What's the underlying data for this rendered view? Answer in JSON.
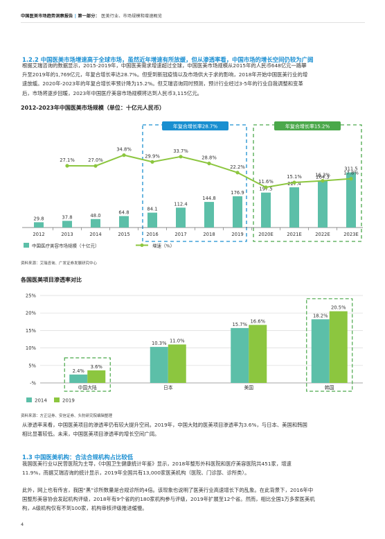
{
  "header": {
    "report_title": "中国医美市场趋势洞察报告",
    "separator": "|",
    "section_label": "第一部分：",
    "section_sub": "医美行业、市场规模和增速概览"
  },
  "section_122": {
    "title": "1.2.2 中国医美市场增速高于全球市场，虽然近年增速有所放缓，但从渗透率看，中国市场的增长空间仍较为广阔",
    "paragraph": "根据艾瑞咨询的数据显示，2015-2019年，中国医美需求增速超过全球，中国医美市场规模从2015年的人民币648亿元一路攀\n升至2019年的1,769亿元，年复合增长率达28.7%。但受到新冠疫情以及市场供大于求的影响，2018年开始中国医美行业的增\n速放缓。2020年-2023年的年复合增长率预计降为15.2%。但艾瑞咨询同时预测，预计行业经过3-5年的行业自我调整和变革\n后，市场将逐步回暖，2023年中国医疗美容市场规模将达到人民币3,115亿元。"
  },
  "chart1": {
    "title": "2012-2023年中国医美市场规模（单位：十亿元人民币）",
    "source": "资料来源：艾瑞咨询、广发证券发展研究中心",
    "box_label_left": "年复合增长率28.7%",
    "box_label_right": "年复合增长率15.2%"
  },
  "chart2": {
    "title": "各国医美项目渗透率对比",
    "source": "资料来源：方正证券、安信证券、头豹研究院编辑整理"
  },
  "para_after_chart2": "从渗透率来看，中国医美项目的渗透率仍有较大提升空间。2019年，中国大陆的医美项目渗透率为3.6%，与日本、美国和韩国\n相比显著较低。未来，中国医美项目渗透率的增长空间广阔。",
  "section_13": {
    "title": "1.3 中国医美机构：合法合规机构占比较低",
    "paragraph1": "我国医美行业以民营医院为主导，《中国卫生健康统计年鉴》显示，2018年整形外科医院和医疗美容医院共451家，增速\n11.9%，而据艾瑞咨询的统计显示，2019年全国共有13,000家医美机构（医院、门诊部、诊所类）。",
    "paragraph2": "此外，网上也有传言，我国“黑”诊所数量是合规诊所的4倍。该现象也说明了医美行业高速增长下的乱象。在此背景下，2016年中\n国整形美容协会发起机构评级，2018年有9个省的约180家机构参与评级，2019年扩展至12个省。然而，相比全国1万多家医美机\n构，A级机构仅有不到100家，机构审核评级推进缓慢。"
  },
  "page_number": "4",
  "chart_data": [
    {
      "type": "bar+line",
      "title": "2012-2023年中国医美市场规模（单位：十亿元人民币）",
      "categories": [
        "2012",
        "2013",
        "2014",
        "2015",
        "2016",
        "2017",
        "2018",
        "2019",
        "2020E",
        "2021E",
        "2022E",
        "2023E"
      ],
      "series": [
        {
          "name": "中国医疗美容市场规模（十亿元）",
          "kind": "bar",
          "values": [
            29.8,
            37.8,
            48.0,
            64.8,
            84.1,
            112.4,
            144.8,
            176.9,
            197.5,
            227.4,
            264.3,
            311.5
          ],
          "labels": [
            "29.8",
            "37.8",
            "48.0",
            "64.8",
            "84.1",
            "112.4",
            "144.8",
            "176.9",
            "197.5",
            "227.4",
            "264.3",
            "311.5"
          ]
        },
        {
          "name": "增速（%）",
          "kind": "line",
          "values": [
            null,
            27.1,
            27.0,
            34.8,
            29.9,
            33.7,
            28.8,
            22.2,
            11.6,
            15.1,
            16.3,
            17.8
          ],
          "labels": [
            "",
            "27.1%",
            "27.0%",
            "34.8%",
            "29.9%",
            "33.7%",
            "28.8%",
            "22.2%",
            "11.6%",
            "15.1%",
            "16.3%",
            "17.8%"
          ]
        }
      ],
      "colors": {
        "bar": "#5cbfa8",
        "line": "#8cc63f",
        "box_left": "#1a8fd0",
        "box_right": "#4aa84a"
      },
      "legend_placement": "bottom-left"
    },
    {
      "type": "bar",
      "title": "各国医美项目渗透率对比",
      "categories": [
        "中国大陆",
        "日本",
        "美国",
        "韩国"
      ],
      "series": [
        {
          "name": "2014",
          "values": [
            2.4,
            10.3,
            15.7,
            18.2
          ],
          "labels": [
            "2.4%",
            "10.3%",
            "15.7%",
            "18.2%"
          ]
        },
        {
          "name": "2019",
          "values": [
            3.6,
            11.0,
            16.6,
            20.5
          ],
          "labels": [
            "3.6%",
            "11.0%",
            "16.6%",
            "20.5%"
          ]
        }
      ],
      "yticks": [
        "25%",
        "20%",
        "15%",
        "10%",
        "5%",
        "-%"
      ],
      "ylim": [
        0,
        25
      ],
      "grid": true,
      "colors": {
        "2014": "#5cbfa8",
        "2019": "#8cc63f",
        "highlight": "#4aa84a"
      },
      "legend_placement": "bottom-left"
    }
  ]
}
